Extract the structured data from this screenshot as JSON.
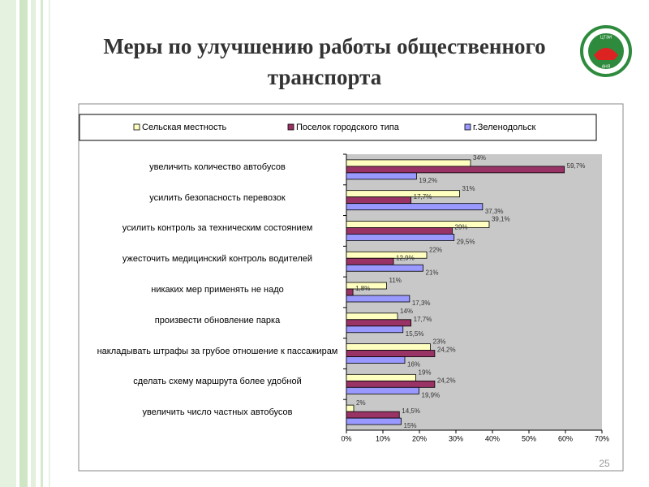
{
  "title": "Меры по улучшению работы общественного транспорта",
  "page_number": "25",
  "logo": {
    "top": "ЦТЭИ",
    "bottom": "АНЯ"
  },
  "chart_data": {
    "type": "hbar",
    "categories": [
      "увеличить количество автобусов",
      "усилить безопасность перевозок",
      "усилить контроль за техническим состоянием",
      "ужесточить медицинский контроль водителей",
      "никаких мер применять не надо",
      "произвести обновление парка",
      "накладывать штрафы за грубое отношение к пассажирам",
      "сделать схему маршрута более удобной",
      "увеличить число частных автобусов"
    ],
    "series": [
      {
        "name": "Сельская местность",
        "color": "#ffffc0",
        "values": [
          34,
          31,
          39.1,
          22,
          11,
          14,
          23,
          19,
          2
        ],
        "value_labels": [
          "34%",
          "31%",
          "39,1%",
          "22%",
          "11%",
          "14%",
          "23%",
          "19%",
          "2%"
        ]
      },
      {
        "name": "Поселок городского типа",
        "color": "#993366",
        "values": [
          59.7,
          17.7,
          29,
          12.9,
          1.8,
          17.7,
          24.2,
          24.2,
          14.5
        ],
        "value_labels": [
          "59,7%",
          "17,7%",
          "29%",
          "12,9%",
          "1,8%",
          "17,7%",
          "24,2%",
          "24,2%",
          "14,5%"
        ]
      },
      {
        "name": "г.Зеленодольск",
        "color": "#9999ff",
        "values": [
          19.2,
          37.3,
          29.5,
          21,
          17.3,
          15.5,
          16,
          19.9,
          15
        ],
        "value_labels": [
          "19,2%",
          "37,3%",
          "29,5%",
          "21%",
          "17,3%",
          "15,5%",
          "16%",
          "19,9%",
          "15%"
        ]
      }
    ],
    "xlim": [
      0,
      70
    ],
    "xticks": [
      {
        "value": 0,
        "label": "0%"
      },
      {
        "value": 10,
        "label": "10%"
      },
      {
        "value": 20,
        "label": "20%"
      },
      {
        "value": 30,
        "label": "30%"
      },
      {
        "value": 40,
        "label": "40%"
      },
      {
        "value": 50,
        "label": "50%"
      },
      {
        "value": 60,
        "label": "60%"
      },
      {
        "value": 70,
        "label": "70%"
      }
    ],
    "grid": false,
    "legend": "top"
  }
}
